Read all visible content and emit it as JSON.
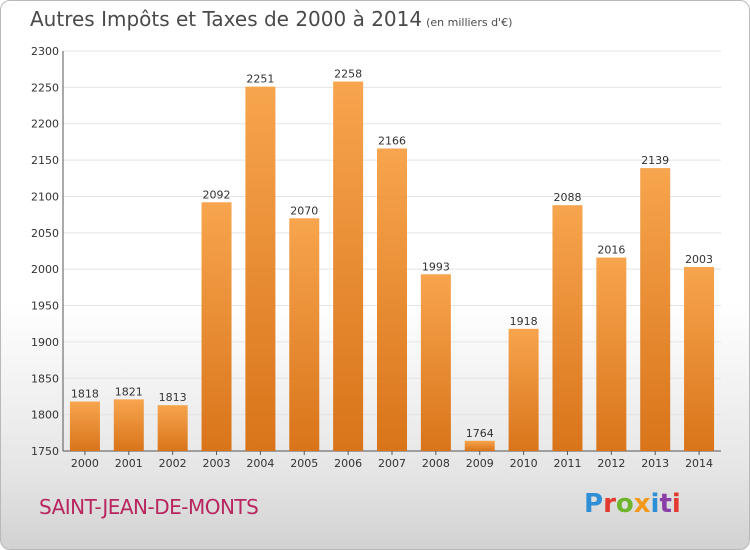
{
  "header": {
    "title": "Autres Impôts et Taxes de 2000 à 2014",
    "subtitle": "(en milliers d'€)"
  },
  "footer": {
    "city": "SAINT-JEAN-DE-MONTS",
    "logo": "Proxiti",
    "logo_colors": [
      "#2f8fd6",
      "#e23a2e",
      "#6fb52c",
      "#f39a1d",
      "#2f8fd6",
      "#8a3fa6",
      "#e23a2e"
    ]
  },
  "chart_data": {
    "type": "bar",
    "categories": [
      "2000",
      "2001",
      "2002",
      "2003",
      "2004",
      "2005",
      "2006",
      "2007",
      "2008",
      "2009",
      "2010",
      "2011",
      "2012",
      "2013",
      "2014"
    ],
    "values": [
      1818,
      1821,
      1813,
      2092,
      2251,
      2070,
      2258,
      2166,
      1993,
      1764,
      1918,
      2088,
      2016,
      2139,
      2003
    ],
    "title": "Autres Impôts et Taxes de 2000 à 2014",
    "subtitle": "(en milliers d'€)",
    "ylim": [
      1750,
      2300
    ],
    "yticks": [
      1750,
      1800,
      1850,
      1900,
      1950,
      2000,
      2050,
      2100,
      2150,
      2200,
      2250,
      2300
    ],
    "grid": true,
    "bar_color_top": "#f7a54e",
    "bar_color_bottom": "#d9741a"
  }
}
